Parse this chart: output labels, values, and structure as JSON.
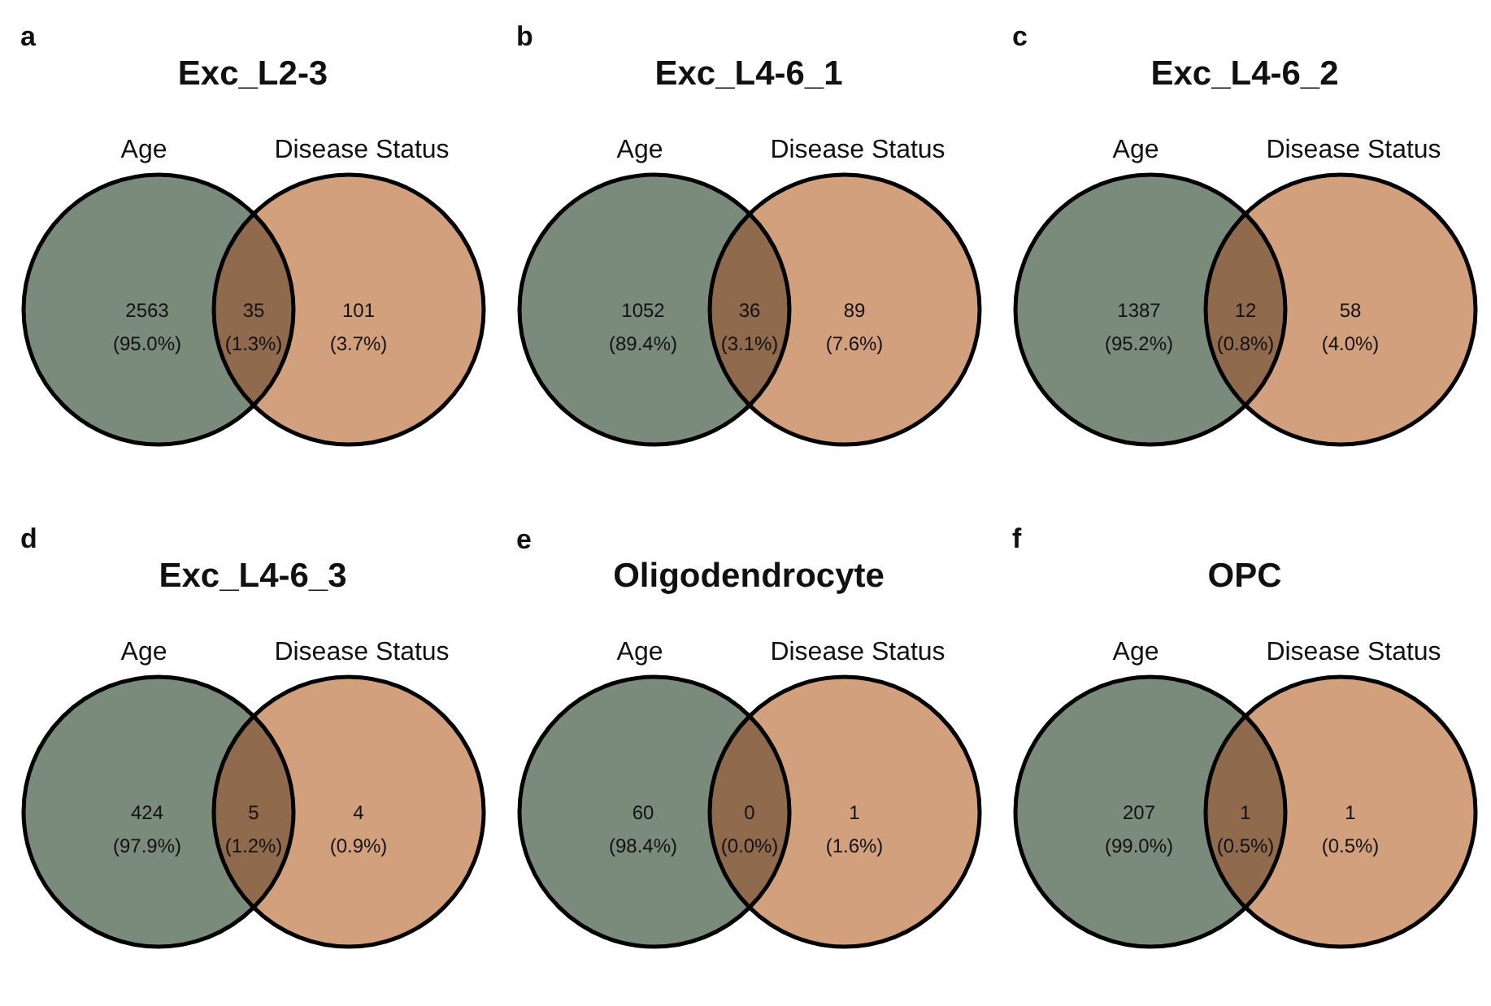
{
  "chart_data": [
    {
      "type": "other",
      "title": "Exc_L2-3",
      "annotations": [
        "a",
        "Age",
        "Disease Status",
        "(95.0%)",
        "(1.3%)",
        "(3.7%)"
      ],
      "categories": [
        null,
        null,
        null
      ],
      "values": [
        2563,
        35,
        101
      ],
      "data_labels": true,
      "colors": [
        "#7b8b7b",
        "#8f6a4c",
        "#d3a07d"
      ]
    },
    {
      "type": "other",
      "title": "Exc_L4-6_1",
      "annotations": [
        "b",
        "Age",
        "Disease Status",
        "(89.4%)",
        "(3.1%)",
        "(7.6%)"
      ],
      "categories": [
        null,
        null,
        null
      ],
      "values": [
        1052,
        36,
        89
      ],
      "data_labels": true,
      "colors": [
        "#7b8b7b",
        "#8f6a4c",
        "#d3a07d"
      ]
    },
    {
      "type": "other",
      "title": "Exc_L4-6_2",
      "annotations": [
        "c",
        "Age",
        "Disease Status",
        "(95.2%)",
        "(0.8%)",
        "(4.0%)"
      ],
      "categories": [
        null,
        null,
        null
      ],
      "values": [
        1387,
        12,
        58
      ],
      "data_labels": true,
      "colors": [
        "#7b8b7b",
        "#8f6a4c",
        "#d3a07d"
      ]
    },
    {
      "type": "other",
      "title": "Exc_L4-6_3",
      "annotations": [
        "d",
        "Age",
        "Disease Status",
        "(97.9%)",
        "(1.2%)",
        "(0.9%)"
      ],
      "categories": [
        null,
        null,
        null
      ],
      "values": [
        424,
        5,
        4
      ],
      "data_labels": true,
      "colors": [
        "#7b8b7b",
        "#8f6a4c",
        "#d3a07d"
      ]
    },
    {
      "type": "other",
      "title": "Oligodendrocyte",
      "annotations": [
        "e",
        "Age",
        "Disease Status",
        "(98.4%)",
        "(0.0%)",
        "(1.6%)"
      ],
      "categories": [
        null,
        null,
        null
      ],
      "values": [
        60,
        0,
        1
      ],
      "data_labels": true,
      "colors": [
        "#7b8b7b",
        "#8f6a4c",
        "#d3a07d"
      ]
    },
    {
      "type": "other",
      "title": "OPC",
      "annotations": [
        "f",
        "Age",
        "Disease Status",
        "(99.0%)",
        "(0.5%)",
        "(0.5%)"
      ],
      "categories": [
        null,
        null,
        null
      ],
      "values": [
        207,
        1,
        1
      ],
      "data_labels": true,
      "colors": [
        "#7b8b7b",
        "#8f6a4c",
        "#d3a07d"
      ]
    }
  ]
}
